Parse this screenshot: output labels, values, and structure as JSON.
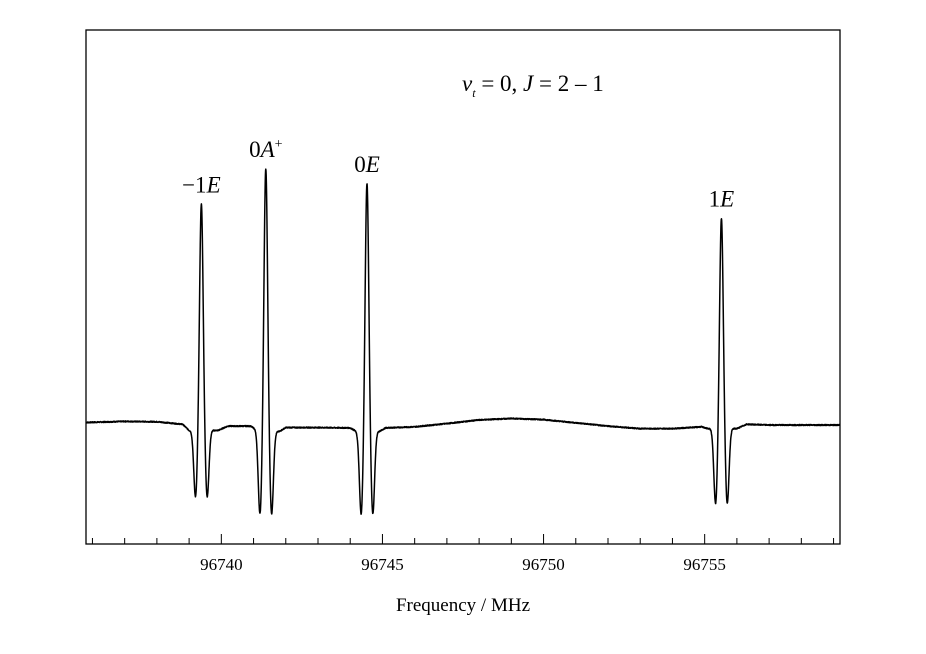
{
  "chart_data": {
    "type": "line",
    "title": "v_t = 0, J = 2 – 1",
    "title_parts": {
      "v": "v",
      "sub": "t",
      "rest1": " = 0, ",
      "J": "J",
      "rest2": " = 2 – 1"
    },
    "xlabel": "Frequency / MHz",
    "ylabel": "",
    "xlim": [
      96735.8,
      96759.2
    ],
    "ylim": [
      0,
      1
    ],
    "xticks_major": [
      96740,
      96745,
      96750,
      96755
    ],
    "xtick_labels": [
      "96740",
      "96745",
      "96750",
      "96755"
    ],
    "xticks_minor_step": 1,
    "yticks": [],
    "grid": false,
    "legend": "none",
    "series": [
      {
        "baseline": [
          [
            96735.8,
            0.297
          ],
          [
            96737.0,
            0.3
          ],
          [
            96738.0,
            0.299
          ],
          [
            96738.8,
            0.292
          ],
          [
            96739.0,
            0.275
          ],
          [
            96739.9,
            0.275
          ],
          [
            96740.2,
            0.287
          ],
          [
            96740.9,
            0.287
          ],
          [
            96741.2,
            0.272
          ],
          [
            96741.8,
            0.272
          ],
          [
            96742.0,
            0.283
          ],
          [
            96743.0,
            0.283
          ],
          [
            96744.0,
            0.282
          ],
          [
            96744.2,
            0.272
          ],
          [
            96744.9,
            0.272
          ],
          [
            96745.1,
            0.282
          ],
          [
            96746.0,
            0.285
          ],
          [
            96747.0,
            0.294
          ],
          [
            96748.0,
            0.304
          ],
          [
            96749.0,
            0.308
          ],
          [
            96750.0,
            0.305
          ],
          [
            96751.0,
            0.296
          ],
          [
            96752.0,
            0.287
          ],
          [
            96753.0,
            0.28
          ],
          [
            96754.0,
            0.28
          ],
          [
            96754.9,
            0.285
          ],
          [
            96755.1,
            0.28
          ],
          [
            96756.0,
            0.28
          ],
          [
            96756.3,
            0.292
          ],
          [
            96757.0,
            0.29
          ],
          [
            96759.2,
            0.29
          ]
        ],
        "lines": [
          {
            "label": "−1E",
            "label_main": "−1",
            "label_italic": "E",
            "label_sup": "",
            "center": 96739.38,
            "height": 0.902,
            "dip": 0.08
          },
          {
            "label": "0A+",
            "label_main": "0",
            "label_italic": "A",
            "label_sup": "+",
            "center": 96741.38,
            "height": 1.0,
            "dip": 0.03
          },
          {
            "label": "0E",
            "label_main": "0",
            "label_italic": "E",
            "label_sup": "",
            "center": 96744.52,
            "height": 0.959,
            "dip": 0.03
          },
          {
            "label": "1E",
            "label_main": "1",
            "label_italic": "E",
            "label_sup": "",
            "center": 96755.52,
            "height": 0.863,
            "dip": 0.06
          }
        ]
      }
    ]
  },
  "colors": {
    "line": "#000000",
    "frame": "#000000",
    "background": "#ffffff"
  }
}
